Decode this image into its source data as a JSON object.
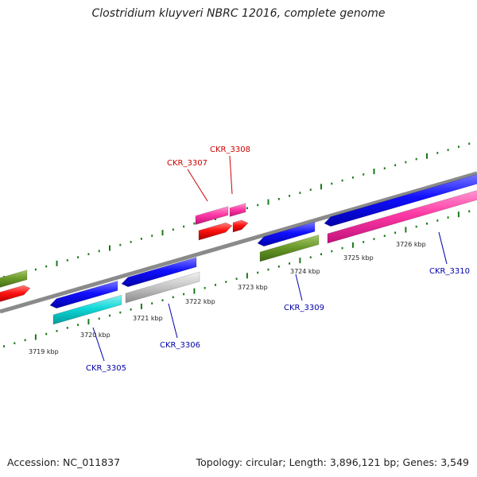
{
  "title": "Clostridium kluyveri NBRC 12016, complete genome",
  "footer": {
    "accession": "Accession: NC_011837",
    "summary": "Topology: circular; Length: 3,896,121 bp; Genes: 3,549"
  },
  "colors": {
    "backbone": "#888888",
    "tick": "#1a7a1a",
    "label_plus": "#cc0000",
    "label_minus": "#0000aa",
    "blue": "#0000ee",
    "green": "#5a8a1e",
    "red": "#ee0000",
    "pink": "#ff2f9f",
    "cyan": "#00d0d0",
    "gray": "#bbbbbb"
  },
  "kbp_labels": [
    "3719 kbp",
    "3720 kbp",
    "3721 kbp",
    "3722 kbp",
    "3723 kbp",
    "3724 kbp",
    "3725 kbp",
    "3726 kbp"
  ],
  "gene_labels": [
    "CKR_3305",
    "CKR_3306",
    "CKR_3307",
    "CKR_3308",
    "CKR_3309",
    "CKR_3310"
  ]
}
